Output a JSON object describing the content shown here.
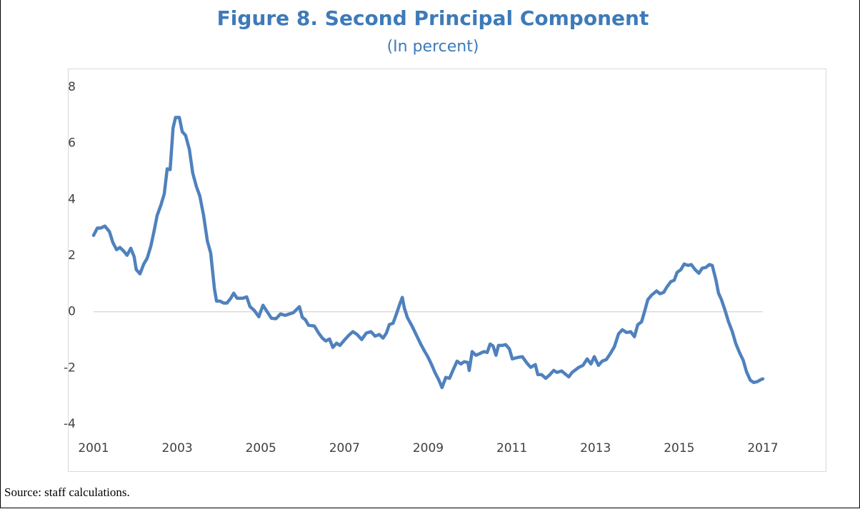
{
  "chart_data": {
    "type": "line",
    "title": "Figure 8. Second Principal Component",
    "subtitle": "(In percent)",
    "source": "Source: staff calculations.",
    "x": [
      2001.0,
      2001.09,
      2001.17,
      2001.27,
      2001.38,
      2001.46,
      2001.55,
      2001.63,
      2001.72,
      2001.8,
      2001.89,
      2001.97,
      2002.02,
      2002.11,
      2002.2,
      2002.28,
      2002.37,
      2002.45,
      2002.52,
      2002.61,
      2002.69,
      2002.76,
      2002.83,
      2002.9,
      2002.96,
      2003.05,
      2003.12,
      2003.2,
      2003.29,
      2003.37,
      2003.46,
      2003.54,
      2003.63,
      2003.72,
      2003.8,
      2003.89,
      2003.94,
      2004.02,
      2004.11,
      2004.19,
      2004.28,
      2004.35,
      2004.43,
      2004.57,
      2004.66,
      2004.74,
      2004.84,
      2004.95,
      2005.05,
      2005.15,
      2005.25,
      2005.36,
      2005.47,
      2005.58,
      2005.68,
      2005.78,
      2005.92,
      2005.99,
      2006.06,
      2006.14,
      2006.28,
      2006.38,
      2006.47,
      2006.55,
      2006.64,
      2006.72,
      2006.81,
      2006.89,
      2006.99,
      2007.1,
      2007.2,
      2007.3,
      2007.41,
      2007.52,
      2007.63,
      2007.73,
      2007.83,
      2007.92,
      2008.0,
      2008.07,
      2008.16,
      2008.24,
      2008.31,
      2008.38,
      2008.43,
      2008.5,
      2008.62,
      2008.72,
      2008.82,
      2008.91,
      2008.99,
      2009.08,
      2009.16,
      2009.25,
      2009.33,
      2009.42,
      2009.51,
      2009.59,
      2009.69,
      2009.78,
      2009.86,
      2009.95,
      2009.98,
      2010.05,
      2010.14,
      2010.22,
      2010.33,
      2010.41,
      2010.48,
      2010.55,
      2010.62,
      2010.68,
      2010.77,
      2010.85,
      2010.94,
      2011.01,
      2011.13,
      2011.25,
      2011.35,
      2011.45,
      2011.56,
      2011.62,
      2011.71,
      2011.81,
      2011.91,
      2012.0,
      2012.08,
      2012.19,
      2012.27,
      2012.36,
      2012.44,
      2012.53,
      2012.6,
      2012.7,
      2012.8,
      2012.89,
      2012.97,
      2013.07,
      2013.16,
      2013.26,
      2013.35,
      2013.45,
      2013.55,
      2013.64,
      2013.74,
      2013.84,
      2013.93,
      2014.01,
      2014.1,
      2014.18,
      2014.25,
      2014.34,
      2014.46,
      2014.54,
      2014.63,
      2014.71,
      2014.8,
      2014.88,
      2014.95,
      2015.04,
      2015.12,
      2015.21,
      2015.29,
      2015.38,
      2015.47,
      2015.55,
      2015.64,
      2015.72,
      2015.79,
      2015.88,
      2015.94,
      2016.01,
      2016.1,
      2016.18,
      2016.27,
      2016.35,
      2016.44,
      2016.53,
      2016.61,
      2016.7,
      2016.78,
      2016.87,
      2016.95,
      2017.0
    ],
    "series": [
      {
        "color": "#4f81bd",
        "values": [
          2.72,
          2.98,
          2.98,
          3.05,
          2.85,
          2.47,
          2.21,
          2.29,
          2.16,
          2.01,
          2.26,
          1.96,
          1.5,
          1.35,
          1.7,
          1.9,
          2.34,
          2.9,
          3.43,
          3.8,
          4.2,
          5.09,
          5.06,
          6.54,
          6.92,
          6.92,
          6.41,
          6.28,
          5.78,
          4.94,
          4.45,
          4.12,
          3.43,
          2.52,
          2.09,
          0.81,
          0.38,
          0.38,
          0.31,
          0.31,
          0.48,
          0.66,
          0.48,
          0.48,
          0.53,
          0.18,
          0.05,
          -0.18,
          0.23,
          0,
          -0.23,
          -0.25,
          -0.08,
          -0.13,
          -0.08,
          -0.03,
          0.18,
          -0.2,
          -0.28,
          -0.48,
          -0.51,
          -0.76,
          -0.94,
          -1.04,
          -0.97,
          -1.27,
          -1.12,
          -1.2,
          -1.02,
          -0.84,
          -0.71,
          -0.81,
          -0.99,
          -0.76,
          -0.71,
          -0.87,
          -0.81,
          -0.94,
          -0.76,
          -0.46,
          -0.41,
          -0.08,
          0.23,
          0.51,
          0.13,
          -0.2,
          -0.53,
          -0.84,
          -1.15,
          -1.4,
          -1.6,
          -1.88,
          -2.16,
          -2.42,
          -2.7,
          -2.34,
          -2.37,
          -2.09,
          -1.76,
          -1.86,
          -1.78,
          -1.81,
          -2.09,
          -1.42,
          -1.55,
          -1.5,
          -1.42,
          -1.45,
          -1.15,
          -1.22,
          -1.55,
          -1.2,
          -1.2,
          -1.17,
          -1.32,
          -1.68,
          -1.63,
          -1.6,
          -1.81,
          -1.98,
          -1.88,
          -2.24,
          -2.24,
          -2.37,
          -2.24,
          -2.09,
          -2.16,
          -2.11,
          -2.21,
          -2.32,
          -2.16,
          -2.06,
          -1.98,
          -1.91,
          -1.68,
          -1.86,
          -1.6,
          -1.91,
          -1.76,
          -1.7,
          -1.5,
          -1.25,
          -0.79,
          -0.64,
          -0.74,
          -0.71,
          -0.89,
          -0.46,
          -0.36,
          0.05,
          0.43,
          0.59,
          0.74,
          0.64,
          0.69,
          0.89,
          1.07,
          1.12,
          1.4,
          1.5,
          1.7,
          1.65,
          1.68,
          1.5,
          1.37,
          1.55,
          1.58,
          1.68,
          1.65,
          1.12,
          0.66,
          0.43,
          0.03,
          -0.36,
          -0.71,
          -1.12,
          -1.45,
          -1.73,
          -2.14,
          -2.44,
          -2.52,
          -2.49,
          -2.42,
          -2.39
        ]
      }
    ],
    "xlim": [
      2001,
      2017
    ],
    "xticks": [
      2001,
      2003,
      2005,
      2007,
      2009,
      2011,
      2013,
      2015,
      2017
    ],
    "ylim": [
      -4,
      8
    ],
    "yticks": [
      -4,
      -2,
      0,
      2,
      4,
      6,
      8
    ],
    "grid": false
  }
}
